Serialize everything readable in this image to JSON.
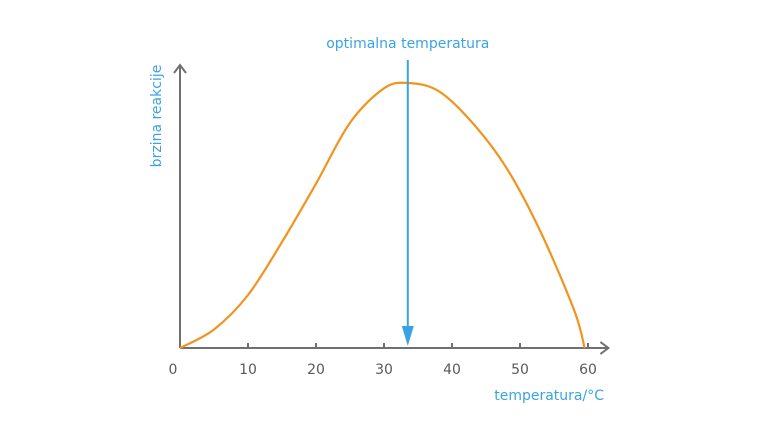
{
  "chart_data": {
    "type": "line",
    "title": "",
    "xlabel": "temperatura/°C",
    "ylabel": "brzina reakcije",
    "xlim": [
      0,
      63
    ],
    "ylim": [
      0,
      1.07
    ],
    "xticks": [
      0,
      10,
      20,
      30,
      40,
      50,
      60
    ],
    "xtick_labels": [
      "0",
      "10",
      "20",
      "30",
      "40",
      "50",
      "60"
    ],
    "yticks": [],
    "grid": false,
    "series": [
      {
        "name": "",
        "x": [
          0,
          5,
          10,
          15,
          20,
          25,
          30,
          33.5,
          38,
          43,
          48,
          53,
          58,
          59.5
        ],
        "y": [
          0,
          0.07,
          0.2,
          0.4,
          0.62,
          0.85,
          0.98,
          1.0,
          0.97,
          0.85,
          0.68,
          0.44,
          0.14,
          0
        ],
        "color": "#f0941f"
      }
    ],
    "annotations": [
      {
        "label": "optimalna temperatura",
        "x": 33.5,
        "color": "#3aa3e3"
      }
    ]
  },
  "colors": {
    "axis": "#707070",
    "tick_text": "#5a5a5a",
    "axis_title": "#3aa3e3",
    "curve": "#f0941f",
    "annotation": "#3aa3e3"
  }
}
